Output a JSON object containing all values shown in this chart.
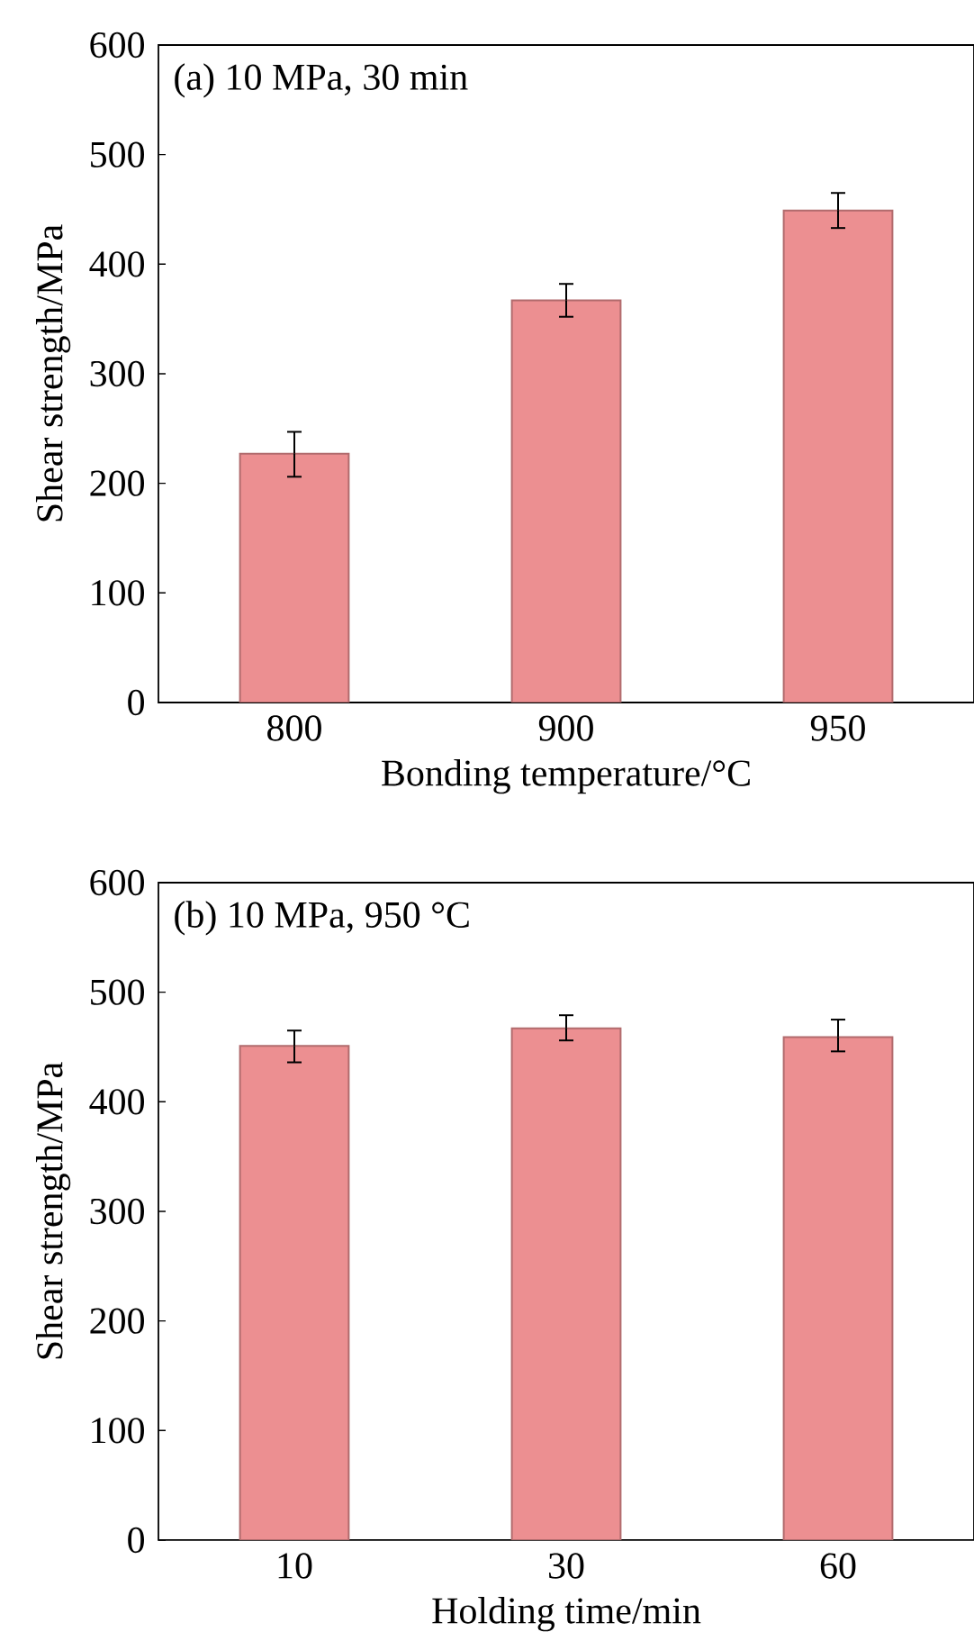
{
  "chart_data": [
    {
      "type": "bar",
      "annotations": [
        "(a)  10 MPa, 30 min"
      ],
      "categories": [
        "800",
        "900",
        "950"
      ],
      "xlabel": "Bonding temperature/°C",
      "ylabel": "Shear strength/MPa",
      "values": [
        227,
        367,
        449
      ],
      "errors": [
        [
          206,
          247
        ],
        [
          352,
          382
        ],
        [
          433,
          465
        ]
      ],
      "color": "#ec8f91",
      "ylim": [
        0,
        600
      ],
      "yticks": [
        0,
        100,
        200,
        300,
        400,
        500,
        600
      ]
    },
    {
      "type": "bar",
      "annotations": [
        "(b)  10 MPa, 950 °C"
      ],
      "categories": [
        "10",
        "30",
        "60"
      ],
      "xlabel": "Holding time/min",
      "ylabel": "Shear strength/MPa",
      "values": [
        451,
        467,
        459
      ],
      "errors": [
        [
          436,
          465
        ],
        [
          456,
          479
        ],
        [
          446,
          475
        ]
      ],
      "color": "#ec8f91",
      "ylim": [
        0,
        600
      ],
      "yticks": [
        0,
        100,
        200,
        300,
        400,
        500,
        600
      ]
    }
  ]
}
